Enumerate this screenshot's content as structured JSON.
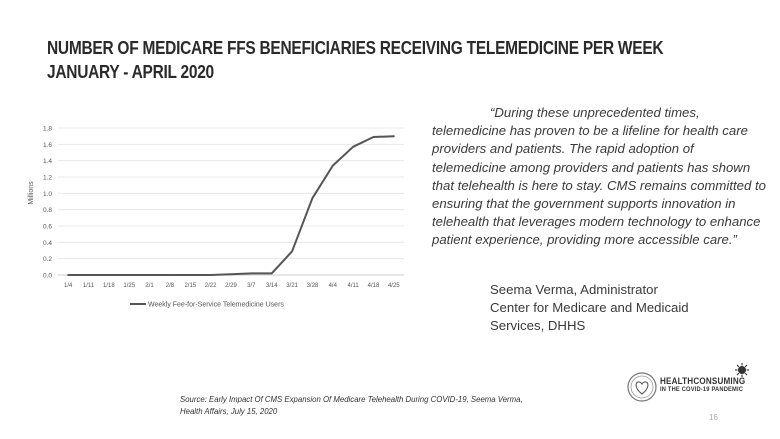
{
  "slide": {
    "title_line1": "Number of Medicare FFS Beneficiaries Receiving Telemedicine per Week",
    "title_line2": "January - April 2020",
    "quote": "“During these unprecedented times, telemedicine has proven to be a lifeline for health care providers and patients. The rapid adoption of telemedicine among providers and patients has shown that telehealth is here to stay. CMS remains committed to ensuring that the government supports innovation in telehealth that leverages modern technology to enhance patient experience, providing more accessible care.”",
    "attribution_name": "Seema Verma, Administrator",
    "attribution_org_line1": "Center for Medicare and Medicaid",
    "attribution_org_line2": "Services, DHHS",
    "source_line1": "Source: Early Impact Of CMS Expansion Of Medicare Telehealth During COVID-19, Seema Verma,",
    "source_line2": "Health Affairs, July 15, 2020",
    "logo_line1": "HEALTHCONSUMING",
    "logo_line2": "IN THE COVID-19 PANDEMIC",
    "page_number": "16"
  },
  "chart_data": {
    "type": "line",
    "categories": [
      "1/4",
      "1/11",
      "1/18",
      "1/25",
      "2/1",
      "2/8",
      "2/15",
      "2/22",
      "2/29",
      "3/7",
      "3/14",
      "3/21",
      "3/28",
      "4/4",
      "4/11",
      "4/18",
      "4/25"
    ],
    "series": [
      {
        "name": "Weekly Fee-for-Service Telemedicine Users",
        "values": [
          0.0,
          0.0,
          0.0,
          0.0,
          0.0,
          0.0,
          0.0,
          0.0,
          0.01,
          0.02,
          0.02,
          0.29,
          0.94,
          1.34,
          1.57,
          1.69,
          1.7
        ],
        "color": "#555555"
      }
    ],
    "ylabel": "Millions",
    "xlabel": "",
    "ylim": [
      0,
      1.8
    ],
    "yticks": [
      "0.0",
      "0.2",
      "0.4",
      "0.6",
      "0.8",
      "1.0",
      "1.2",
      "1.4",
      "1.6",
      "1.8"
    ],
    "grid": true,
    "legend": "bottom"
  }
}
